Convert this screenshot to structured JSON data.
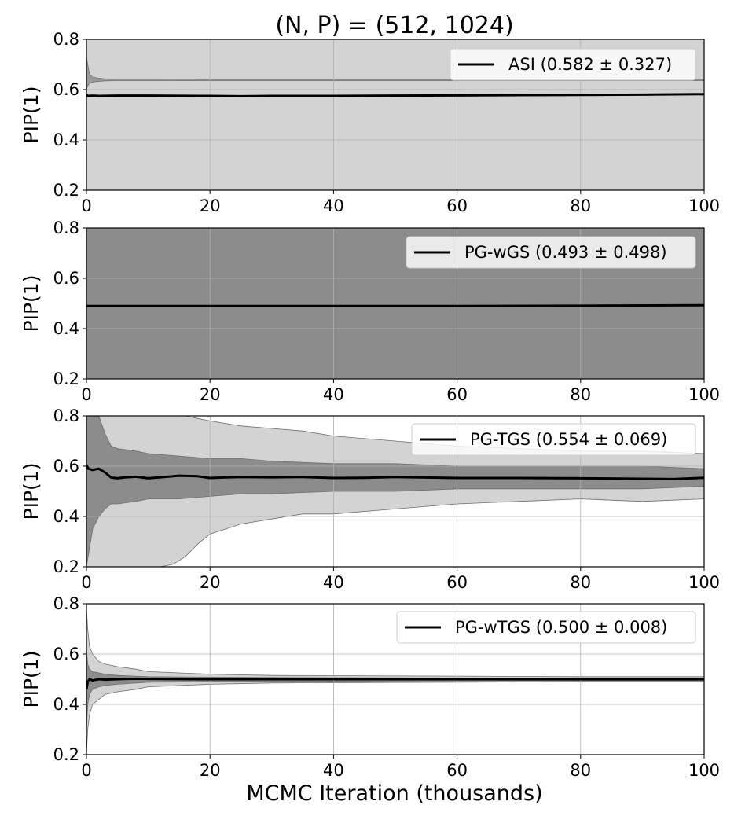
{
  "figure": {
    "title": "(N, P) = (512, 1024)",
    "xlabel": "MCMC Iteration (thousands)"
  },
  "chart_data": [
    {
      "type": "line",
      "series": [
        {
          "name": "ASI (0.582 ± 0.327)",
          "x": [
            0,
            0.2,
            1,
            2,
            5,
            10,
            20,
            25,
            30,
            40,
            50,
            60,
            70,
            80,
            90,
            100
          ],
          "y": [
            0.58,
            0.575,
            0.576,
            0.575,
            0.576,
            0.576,
            0.575,
            0.574,
            0.575,
            0.575,
            0.576,
            0.577,
            0.578,
            0.579,
            0.58,
            0.582
          ]
        }
      ],
      "bands": [
        {
          "color": "#d3d3d3",
          "x": [
            0,
            100
          ],
          "lower": [
            0.2,
            0.2
          ],
          "upper": [
            0.8,
            0.8
          ]
        },
        {
          "color": "#9a9a9a",
          "x": [
            0,
            0.2,
            0.5,
            1,
            2,
            3,
            5,
            10,
            20,
            100
          ],
          "lower": [
            0.6,
            0.615,
            0.625,
            0.63,
            0.633,
            0.635,
            0.636,
            0.636,
            0.636,
            0.636
          ],
          "upper": [
            0.73,
            0.7,
            0.66,
            0.65,
            0.645,
            0.643,
            0.642,
            0.642,
            0.641,
            0.641
          ]
        }
      ],
      "xlim": [
        0,
        100
      ],
      "ylim": [
        0.2,
        0.8
      ],
      "xticks": [
        0,
        20,
        40,
        60,
        80,
        100
      ],
      "yticks": [
        0.2,
        0.4,
        0.6,
        0.8
      ],
      "ylabel": "PIP(1)",
      "grid": true,
      "legend_loc": "upper-right"
    },
    {
      "type": "line",
      "series": [
        {
          "name": "PG-wGS (0.493 ± 0.498)",
          "x": [
            0,
            20,
            40,
            60,
            80,
            100
          ],
          "y": [
            0.49,
            0.49,
            0.49,
            0.49,
            0.491,
            0.493
          ]
        }
      ],
      "bands": [
        {
          "color": "#8c8c8c",
          "x": [
            0,
            100
          ],
          "lower": [
            0.2,
            0.2
          ],
          "upper": [
            0.8,
            0.8
          ]
        }
      ],
      "xlim": [
        0,
        100
      ],
      "ylim": [
        0.2,
        0.8
      ],
      "xticks": [
        0,
        20,
        40,
        60,
        80,
        100
      ],
      "yticks": [
        0.2,
        0.4,
        0.6,
        0.8
      ],
      "ylabel": "PIP(1)",
      "grid": true,
      "legend_loc": "upper-right"
    },
    {
      "type": "line",
      "series": [
        {
          "name": "PG-TGS (0.554 ± 0.069)",
          "x": [
            0,
            0.3,
            1,
            2,
            3,
            4,
            5,
            6,
            8,
            10,
            12,
            15,
            18,
            20,
            22,
            25,
            30,
            35,
            40,
            45,
            50,
            55,
            60,
            70,
            80,
            90,
            95,
            100
          ],
          "y": [
            0.605,
            0.59,
            0.585,
            0.59,
            0.575,
            0.555,
            0.552,
            0.555,
            0.558,
            0.552,
            0.556,
            0.562,
            0.56,
            0.553,
            0.555,
            0.557,
            0.556,
            0.557,
            0.553,
            0.554,
            0.557,
            0.555,
            0.553,
            0.553,
            0.552,
            0.55,
            0.549,
            0.554
          ]
        }
      ],
      "bands": [
        {
          "color": "#d3d3d3",
          "x": [
            0,
            1,
            2,
            5,
            8,
            10,
            12,
            14,
            16,
            18,
            20,
            25,
            30,
            35,
            40,
            50,
            60,
            70,
            80,
            90,
            100
          ],
          "lower": [
            0.2,
            0.2,
            0.2,
            0.2,
            0.2,
            0.2,
            0.2,
            0.21,
            0.24,
            0.29,
            0.33,
            0.37,
            0.39,
            0.41,
            0.41,
            0.43,
            0.45,
            0.46,
            0.47,
            0.46,
            0.47
          ],
          "upper": [
            0.8,
            0.8,
            0.8,
            0.8,
            0.8,
            0.8,
            0.8,
            0.8,
            0.8,
            0.79,
            0.78,
            0.76,
            0.75,
            0.74,
            0.72,
            0.7,
            0.68,
            0.67,
            0.66,
            0.66,
            0.65
          ]
        },
        {
          "color": "#8c8c8c",
          "x": [
            0,
            1,
            2,
            3,
            4,
            5,
            8,
            10,
            15,
            20,
            25,
            30,
            40,
            50,
            60,
            70,
            80,
            90,
            100
          ],
          "lower": [
            0.2,
            0.35,
            0.4,
            0.43,
            0.45,
            0.45,
            0.46,
            0.47,
            0.47,
            0.48,
            0.49,
            0.49,
            0.5,
            0.5,
            0.51,
            0.51,
            0.51,
            0.51,
            0.52
          ],
          "upper": [
            0.8,
            0.8,
            0.8,
            0.73,
            0.68,
            0.67,
            0.66,
            0.65,
            0.64,
            0.63,
            0.63,
            0.62,
            0.61,
            0.61,
            0.6,
            0.6,
            0.6,
            0.6,
            0.59
          ]
        }
      ],
      "xlim": [
        0,
        100
      ],
      "ylim": [
        0.2,
        0.8
      ],
      "xticks": [
        0,
        20,
        40,
        60,
        80,
        100
      ],
      "yticks": [
        0.2,
        0.4,
        0.6,
        0.8
      ],
      "ylabel": "PIP(1)",
      "grid": true,
      "legend_loc": "upper-right"
    },
    {
      "type": "line",
      "series": [
        {
          "name": "PG-wTGS (0.500 ± 0.008)",
          "x": [
            0,
            0.2,
            0.5,
            1,
            2,
            3,
            5,
            8,
            10,
            20,
            30,
            40,
            50,
            60,
            70,
            80,
            90,
            100
          ],
          "y": [
            0.46,
            0.49,
            0.5,
            0.495,
            0.5,
            0.498,
            0.5,
            0.502,
            0.501,
            0.5,
            0.5,
            0.5,
            0.5,
            0.5,
            0.5,
            0.5,
            0.5,
            0.5
          ]
        }
      ],
      "bands": [
        {
          "color": "#d3d3d3",
          "x": [
            0,
            0.2,
            0.5,
            1,
            2,
            3,
            5,
            8,
            10,
            15,
            20,
            30,
            40,
            50,
            60,
            70,
            80,
            90,
            100
          ],
          "lower": [
            0.2,
            0.3,
            0.36,
            0.4,
            0.42,
            0.44,
            0.45,
            0.46,
            0.47,
            0.475,
            0.48,
            0.485,
            0.486,
            0.487,
            0.488,
            0.489,
            0.49,
            0.49,
            0.49
          ],
          "upper": [
            0.78,
            0.7,
            0.63,
            0.6,
            0.57,
            0.56,
            0.55,
            0.54,
            0.53,
            0.525,
            0.52,
            0.515,
            0.514,
            0.513,
            0.512,
            0.511,
            0.51,
            0.51,
            0.51
          ]
        },
        {
          "color": "#8c8c8c",
          "x": [
            0,
            0.2,
            0.5,
            1,
            2,
            3,
            5,
            8,
            10,
            20,
            40,
            60,
            80,
            100
          ],
          "lower": [
            0.3,
            0.4,
            0.44,
            0.46,
            0.47,
            0.475,
            0.48,
            0.485,
            0.488,
            0.49,
            0.492,
            0.493,
            0.494,
            0.494
          ],
          "upper": [
            0.62,
            0.56,
            0.54,
            0.53,
            0.525,
            0.52,
            0.515,
            0.512,
            0.51,
            0.508,
            0.506,
            0.505,
            0.505,
            0.505
          ]
        }
      ],
      "xlim": [
        0,
        100
      ],
      "ylim": [
        0.2,
        0.8
      ],
      "xticks": [
        0,
        20,
        40,
        60,
        80,
        100
      ],
      "yticks": [
        0.2,
        0.4,
        0.6,
        0.8
      ],
      "ylabel": "PIP(1)",
      "grid": true,
      "legend_loc": "upper-right"
    }
  ]
}
